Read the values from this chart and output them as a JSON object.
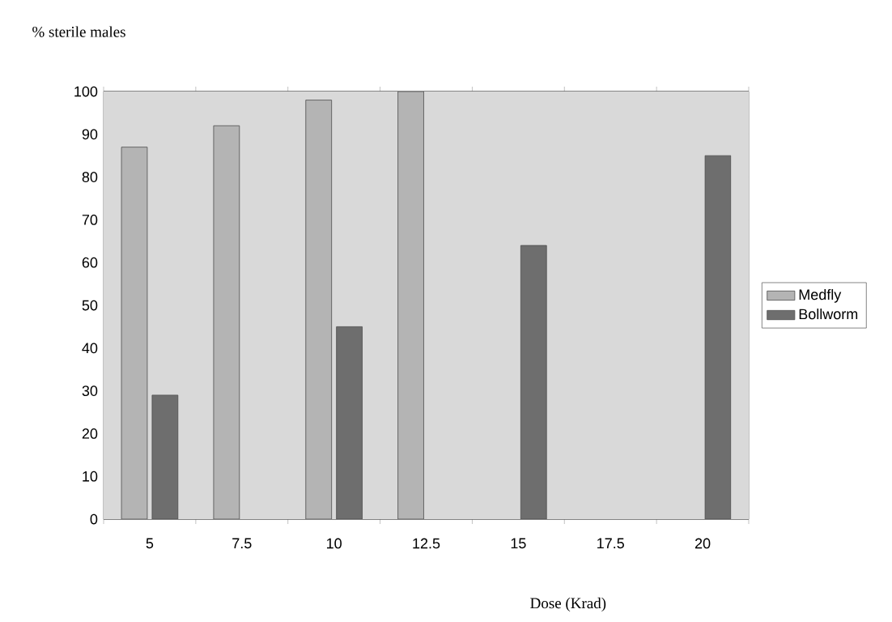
{
  "chart_data": {
    "type": "bar",
    "ylabel": "% sterile males",
    "xlabel": "Dose (Krad)",
    "categories": [
      "5",
      "7.5",
      "10",
      "12.5",
      "15",
      "17.5",
      "20"
    ],
    "series": [
      {
        "name": "Medfly",
        "color": "#b4b4b4",
        "values": [
          87,
          92,
          98,
          100,
          null,
          null,
          null
        ]
      },
      {
        "name": "Bollworm",
        "color": "#6e6e6e",
        "values": [
          29,
          null,
          45,
          null,
          64,
          null,
          85
        ]
      }
    ],
    "ylim": [
      0,
      100
    ],
    "yticks": [
      0,
      10,
      20,
      30,
      40,
      50,
      60,
      70,
      80,
      90,
      100
    ],
    "grid": "y",
    "legend": "right"
  }
}
